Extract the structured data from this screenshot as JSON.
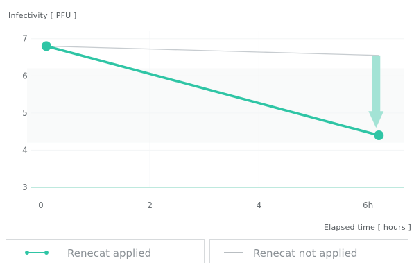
{
  "chart_data": {
    "type": "line",
    "xlabel": "Elapsed time [ hours ]",
    "ylabel": "Infectivity [ PFU ]",
    "xlim": [
      0,
      6.4
    ],
    "ylim": [
      3,
      7.2
    ],
    "x_ticks": [
      "0",
      "2",
      "4",
      "6h"
    ],
    "y_ticks": [
      "3",
      "4",
      "5",
      "6",
      "7"
    ],
    "grid": true,
    "legend_position": "bottom",
    "series": [
      {
        "name": "Renecat applied",
        "color": "#2fc5a5",
        "points": [
          {
            "x": 0.1,
            "y": 6.8
          },
          {
            "x": 6.2,
            "y": 4.4
          }
        ]
      },
      {
        "name": "Renecat not applied",
        "color": "#c7ccd0",
        "points": [
          {
            "x": 0.1,
            "y": 6.8
          },
          {
            "x": 6.2,
            "y": 6.55
          }
        ]
      }
    ],
    "annotation": {
      "type": "down-arrow",
      "x": 6.2,
      "from_y": 6.55,
      "to_y": 4.6,
      "color": "#a3e3d5"
    }
  }
}
